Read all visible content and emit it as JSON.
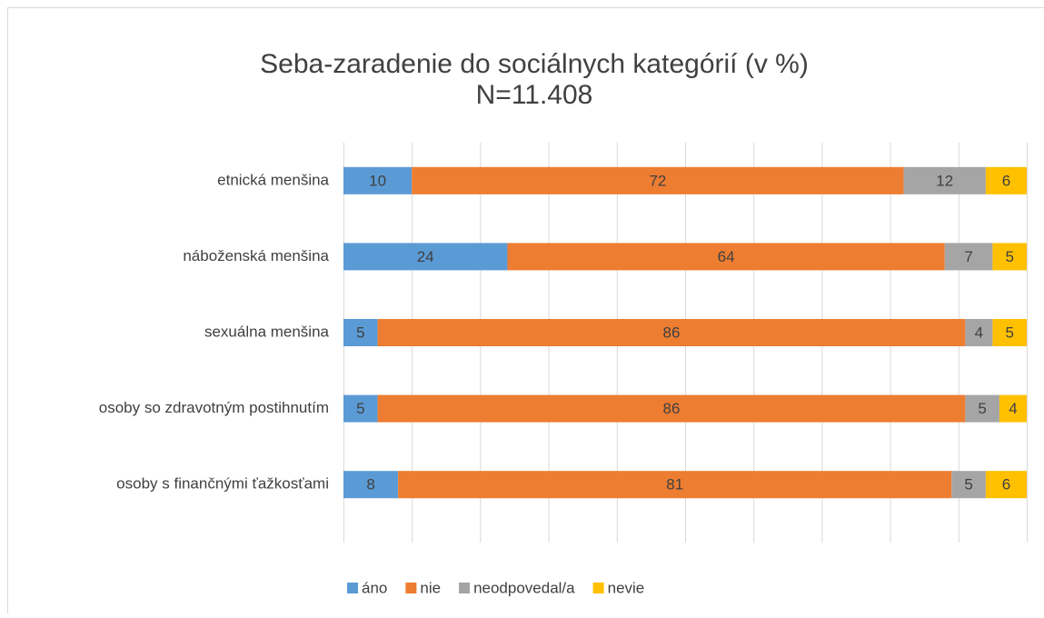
{
  "chart_data": {
    "type": "stacked-bar-horizontal",
    "title": "Seba-zaradenie do sociálnych kategórií (v %)",
    "subtitle": "N=11.408",
    "categories": [
      "etnická menšina",
      "náboženská menšina",
      "sexuálna menšina",
      "osoby so zdravotným postihnutím",
      "osoby s finančnými ťažkosťami"
    ],
    "series": [
      {
        "name": "áno",
        "color": "#5b9bd5",
        "values": [
          10,
          24,
          5,
          5,
          8
        ]
      },
      {
        "name": "nie",
        "color": "#ed7d31",
        "values": [
          72,
          64,
          86,
          86,
          81
        ]
      },
      {
        "name": "neodpovedal/a",
        "color": "#a5a5a5",
        "values": [
          12,
          7,
          4,
          5,
          5
        ]
      },
      {
        "name": "nevie",
        "color": "#ffc000",
        "values": [
          6,
          5,
          5,
          4,
          6
        ]
      }
    ],
    "xlim": [
      0,
      100
    ],
    "xticks": [
      0,
      10,
      20,
      30,
      40,
      50,
      60,
      70,
      80,
      90,
      100
    ],
    "grid": true,
    "legend": "bottom"
  }
}
